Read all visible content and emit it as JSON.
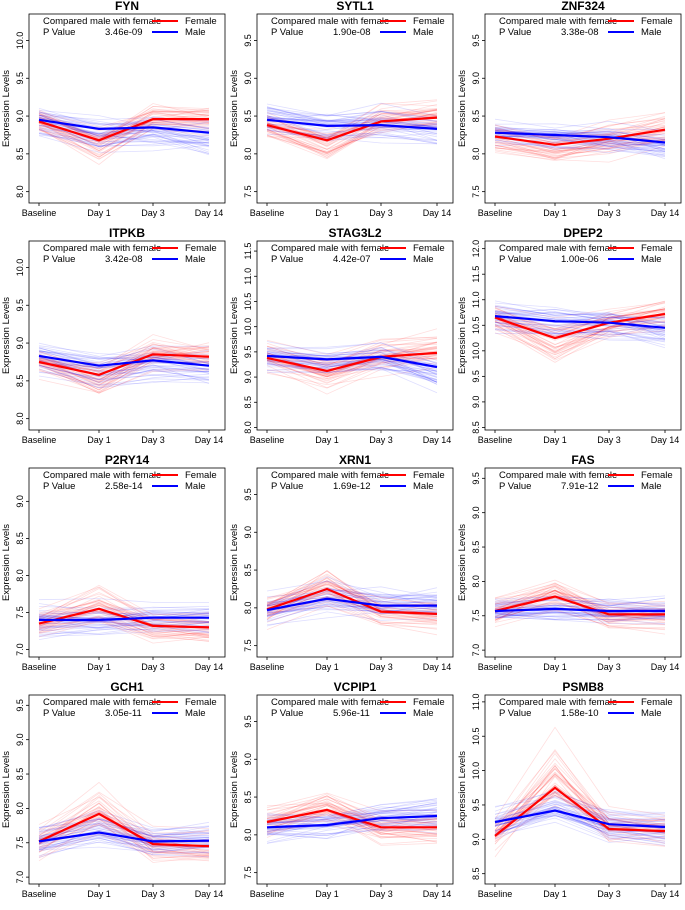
{
  "figure": {
    "description_colors": {
      "female": "#ff0000",
      "male": "#0000ff"
    }
  },
  "chart_data": [
    {
      "type": "line",
      "title": "FYN",
      "categories": [
        "Baseline",
        "Day 1",
        "Day 3",
        "Day 14"
      ],
      "ylabel": "Expression Levels",
      "yticks": [
        8.0,
        8.5,
        9.0,
        9.5,
        10.0
      ],
      "ylim": [
        7.85,
        10.35
      ],
      "legend": {
        "title": "Compared male with female",
        "pvalue_label": "P Value",
        "pvalue": "3.46e-09",
        "female_label": "Female",
        "male_label": "Male"
      },
      "series": [
        {
          "name": "Female",
          "color": "#ff0000",
          "values": [
            8.93,
            8.68,
            8.96,
            8.96
          ]
        },
        {
          "name": "Male",
          "color": "#0000ff",
          "values": [
            8.95,
            8.83,
            8.85,
            8.78
          ]
        }
      ]
    },
    {
      "type": "line",
      "title": "SYTL1",
      "categories": [
        "Baseline",
        "Day 1",
        "Day 3",
        "Day 14"
      ],
      "ylabel": "Expression Levels",
      "yticks": [
        7.5,
        8.0,
        8.5,
        9.0,
        9.5
      ],
      "ylim": [
        7.35,
        9.85
      ],
      "legend": {
        "title": "Compared male with female",
        "pvalue_label": "P Value",
        "pvalue": "1.90e-08",
        "female_label": "Female",
        "male_label": "Male"
      },
      "series": [
        {
          "name": "Female",
          "color": "#ff0000",
          "values": [
            8.38,
            8.18,
            8.43,
            8.48
          ]
        },
        {
          "name": "Male",
          "color": "#0000ff",
          "values": [
            8.45,
            8.37,
            8.38,
            8.33
          ]
        }
      ]
    },
    {
      "type": "line",
      "title": "ZNF324",
      "categories": [
        "Baseline",
        "Day 1",
        "Day 3",
        "Day 14"
      ],
      "ylabel": "Expression Levels",
      "yticks": [
        7.5,
        8.0,
        8.5,
        9.0,
        9.5
      ],
      "ylim": [
        7.35,
        9.85
      ],
      "legend": {
        "title": "Compared male with female",
        "pvalue_label": "P Value",
        "pvalue": "3.38e-08",
        "female_label": "Female",
        "male_label": "Male"
      },
      "series": [
        {
          "name": "Female",
          "color": "#ff0000",
          "values": [
            8.23,
            8.12,
            8.2,
            8.32
          ]
        },
        {
          "name": "Male",
          "color": "#0000ff",
          "values": [
            8.28,
            8.25,
            8.22,
            8.15
          ]
        }
      ]
    },
    {
      "type": "line",
      "title": "ITPKB",
      "categories": [
        "Baseline",
        "Day 1",
        "Day 3",
        "Day 14"
      ],
      "ylabel": "Expression Levels",
      "yticks": [
        8.0,
        8.5,
        9.0,
        9.5,
        10.0
      ],
      "ylim": [
        7.85,
        10.35
      ],
      "legend": {
        "title": "Compared male with female",
        "pvalue_label": "P Value",
        "pvalue": "3.42e-08",
        "female_label": "Female",
        "male_label": "Male"
      },
      "series": [
        {
          "name": "Female",
          "color": "#ff0000",
          "values": [
            8.75,
            8.58,
            8.85,
            8.82
          ]
        },
        {
          "name": "Male",
          "color": "#0000ff",
          "values": [
            8.83,
            8.7,
            8.77,
            8.7
          ]
        }
      ]
    },
    {
      "type": "line",
      "title": "STAG3L2",
      "categories": [
        "Baseline",
        "Day 1",
        "Day 3",
        "Day 14"
      ],
      "ylabel": "Expression Levels",
      "yticks": [
        8.0,
        8.5,
        9.0,
        9.5,
        10.0,
        10.5,
        11.0,
        11.5
      ],
      "ylim": [
        7.95,
        11.7
      ],
      "legend": {
        "title": "Compared male with female",
        "pvalue_label": "P Value",
        "pvalue": "4.42e-07",
        "female_label": "Female",
        "male_label": "Male"
      },
      "series": [
        {
          "name": "Female",
          "color": "#ff0000",
          "values": [
            9.38,
            9.12,
            9.4,
            9.48
          ]
        },
        {
          "name": "Male",
          "color": "#0000ff",
          "values": [
            9.42,
            9.35,
            9.4,
            9.2
          ]
        }
      ]
    },
    {
      "type": "line",
      "title": "DPEP2",
      "categories": [
        "Baseline",
        "Day 1",
        "Day 3",
        "Day 14"
      ],
      "ylabel": "Expression Levels",
      "yticks": [
        8.5,
        9.0,
        9.5,
        10.0,
        10.5,
        11.0,
        11.5,
        12.0
      ],
      "ylim": [
        8.45,
        12.15
      ],
      "legend": {
        "title": "Compared male with female",
        "pvalue_label": "P Value",
        "pvalue": "1.00e-06",
        "female_label": "Female",
        "male_label": "Male"
      },
      "series": [
        {
          "name": "Female",
          "color": "#ff0000",
          "values": [
            10.65,
            10.25,
            10.55,
            10.72
          ]
        },
        {
          "name": "Male",
          "color": "#0000ff",
          "values": [
            10.68,
            10.58,
            10.55,
            10.45
          ]
        }
      ]
    },
    {
      "type": "line",
      "title": "P2RY14",
      "categories": [
        "Baseline",
        "Day 1",
        "Day 3",
        "Day 14"
      ],
      "ylabel": "Expression Levels",
      "yticks": [
        7.0,
        7.5,
        8.0,
        8.5,
        9.0
      ],
      "ylim": [
        6.9,
        9.45
      ],
      "legend": {
        "title": "Compared male with female",
        "pvalue_label": "P Value",
        "pvalue": "2.58e-14",
        "female_label": "Female",
        "male_label": "Male"
      },
      "series": [
        {
          "name": "Female",
          "color": "#ff0000",
          "values": [
            7.35,
            7.55,
            7.32,
            7.3
          ]
        },
        {
          "name": "Male",
          "color": "#0000ff",
          "values": [
            7.4,
            7.4,
            7.43,
            7.43
          ]
        }
      ]
    },
    {
      "type": "line",
      "title": "XRN1",
      "categories": [
        "Baseline",
        "Day 1",
        "Day 3",
        "Day 14"
      ],
      "ylabel": "Expression Levels",
      "yticks": [
        7.5,
        8.0,
        8.5,
        9.0,
        9.5
      ],
      "ylim": [
        7.35,
        9.85
      ],
      "legend": {
        "title": "Compared male with female",
        "pvalue_label": "P Value",
        "pvalue": "1.69e-12",
        "female_label": "Female",
        "male_label": "Male"
      },
      "series": [
        {
          "name": "Female",
          "color": "#ff0000",
          "values": [
            7.98,
            8.25,
            7.95,
            7.92
          ]
        },
        {
          "name": "Male",
          "color": "#0000ff",
          "values": [
            7.97,
            8.12,
            8.03,
            8.03
          ]
        }
      ]
    },
    {
      "type": "line",
      "title": "FAS",
      "categories": [
        "Baseline",
        "Day 1",
        "Day 3",
        "Day 14"
      ],
      "ylabel": "Expression Levels",
      "yticks": [
        7.0,
        7.5,
        8.0,
        8.5,
        9.0,
        9.5
      ],
      "ylim": [
        6.9,
        9.65
      ],
      "legend": {
        "title": "Compared male with female",
        "pvalue_label": "P Value",
        "pvalue": "7.91e-12",
        "female_label": "Female",
        "male_label": "Male"
      },
      "series": [
        {
          "name": "Female",
          "color": "#ff0000",
          "values": [
            7.57,
            7.78,
            7.52,
            7.52
          ]
        },
        {
          "name": "Male",
          "color": "#0000ff",
          "values": [
            7.57,
            7.6,
            7.57,
            7.57
          ]
        }
      ]
    },
    {
      "type": "line",
      "title": "GCH1",
      "categories": [
        "Baseline",
        "Day 1",
        "Day 3",
        "Day 14"
      ],
      "ylabel": "Expression Levels",
      "yticks": [
        7.0,
        7.5,
        8.0,
        8.5,
        9.0,
        9.5
      ],
      "ylim": [
        6.9,
        9.65
      ],
      "legend": {
        "title": "Compared male with female",
        "pvalue_label": "P Value",
        "pvalue": "3.05e-11",
        "female_label": "Female",
        "male_label": "Male"
      },
      "series": [
        {
          "name": "Female",
          "color": "#ff0000",
          "values": [
            7.52,
            7.92,
            7.48,
            7.45
          ]
        },
        {
          "name": "Male",
          "color": "#0000ff",
          "values": [
            7.52,
            7.65,
            7.52,
            7.53
          ]
        }
      ]
    },
    {
      "type": "line",
      "title": "VCPIP1",
      "categories": [
        "Baseline",
        "Day 1",
        "Day 3",
        "Day 14"
      ],
      "ylabel": "Expression Levels",
      "yticks": [
        7.5,
        8.0,
        8.5,
        9.0,
        9.5
      ],
      "ylim": [
        7.35,
        9.85
      ],
      "legend": {
        "title": "Compared male with female",
        "pvalue_label": "P Value",
        "pvalue": "5.96e-11",
        "female_label": "Female",
        "male_label": "Male"
      },
      "series": [
        {
          "name": "Female",
          "color": "#ff0000",
          "values": [
            8.17,
            8.33,
            8.1,
            8.1
          ]
        },
        {
          "name": "Male",
          "color": "#0000ff",
          "values": [
            8.1,
            8.13,
            8.22,
            8.25
          ]
        }
      ]
    },
    {
      "type": "line",
      "title": "PSMB8",
      "categories": [
        "Baseline",
        "Day 1",
        "Day 3",
        "Day 14"
      ],
      "ylabel": "Expression Levels",
      "yticks": [
        8.5,
        9.0,
        9.5,
        10.0,
        10.5,
        11.0
      ],
      "ylim": [
        8.35,
        11.1
      ],
      "legend": {
        "title": "Compared male with female",
        "pvalue_label": "P Value",
        "pvalue": "1.58e-10",
        "female_label": "Female",
        "male_label": "Male"
      },
      "series": [
        {
          "name": "Female",
          "color": "#ff0000",
          "values": [
            9.05,
            9.75,
            9.15,
            9.12
          ]
        },
        {
          "name": "Male",
          "color": "#0000ff",
          "values": [
            9.25,
            9.42,
            9.22,
            9.18
          ]
        }
      ]
    }
  ]
}
